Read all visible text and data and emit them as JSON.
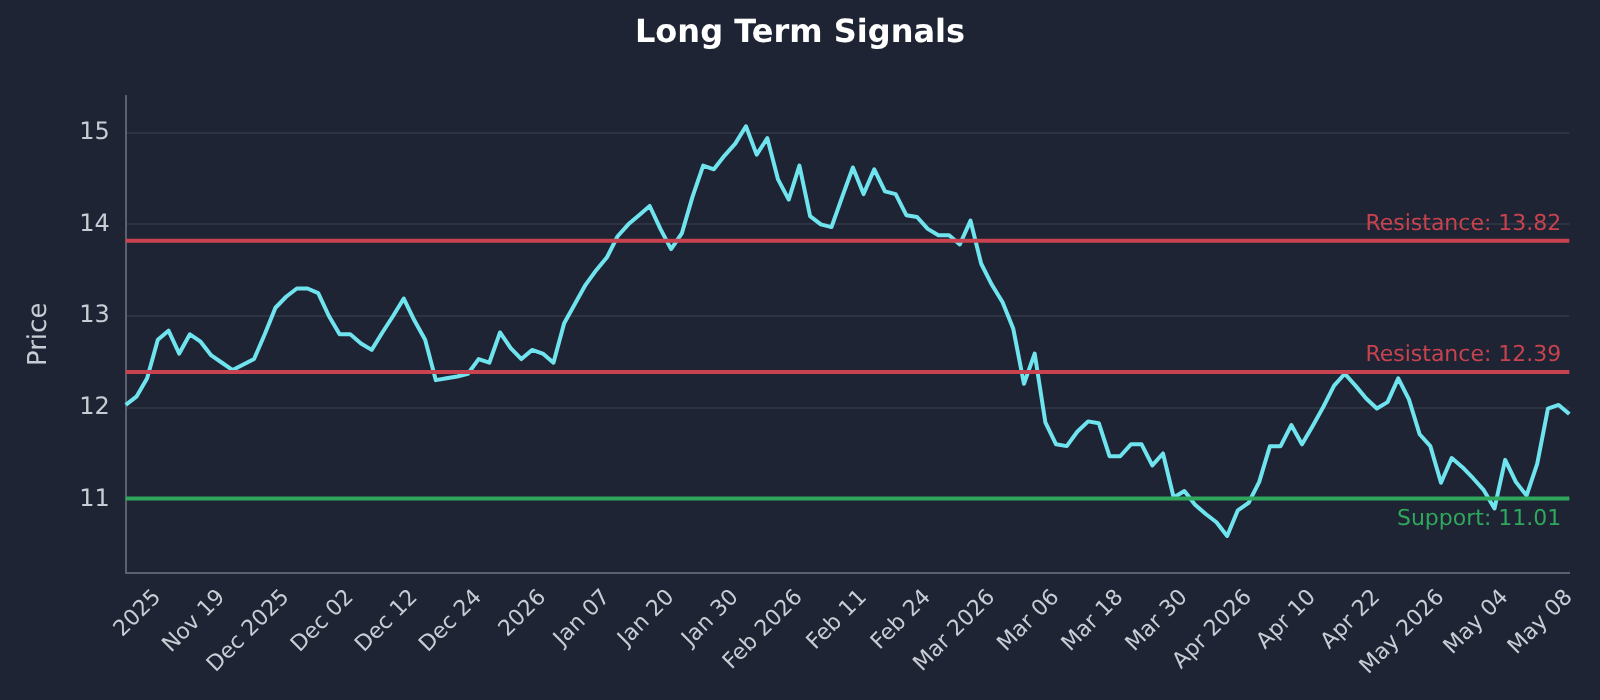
{
  "chart_data": {
    "type": "line",
    "title": "Long Term Signals",
    "ylabel": "Price",
    "categories": [
      null,
      null,
      null,
      "2025",
      null,
      null,
      null,
      null,
      null,
      "Nov 19",
      null,
      null,
      null,
      null,
      null,
      "Dec 2025",
      null,
      null,
      null,
      null,
      null,
      "Dec 02",
      null,
      null,
      null,
      null,
      null,
      "Dec 12",
      null,
      null,
      null,
      null,
      null,
      "Dec 24",
      null,
      null,
      null,
      null,
      null,
      "2026",
      null,
      null,
      null,
      null,
      null,
      "Jan 07",
      null,
      null,
      null,
      null,
      null,
      "Jan 20",
      null,
      null,
      null,
      null,
      null,
      "Jan 30",
      null,
      null,
      null,
      null,
      null,
      "Feb 2026",
      null,
      null,
      null,
      null,
      null,
      "Feb 11",
      null,
      null,
      null,
      null,
      null,
      "Feb 24",
      null,
      null,
      null,
      null,
      null,
      "Mar 2026",
      null,
      null,
      null,
      null,
      null,
      "Mar 06",
      null,
      null,
      null,
      null,
      null,
      "Mar 18",
      null,
      null,
      null,
      null,
      null,
      "Mar 30",
      null,
      null,
      null,
      null,
      null,
      "Apr 2026",
      null,
      null,
      null,
      null,
      null,
      "Apr 10",
      null,
      null,
      null,
      null,
      null,
      "Apr 22",
      null,
      null,
      null,
      null,
      null,
      "May 2026",
      null,
      null,
      null,
      null,
      null,
      "May 04",
      null,
      null,
      null,
      null,
      null,
      "May 08"
    ],
    "series": [
      {
        "color": "#6fe3ee",
        "values": [
          12.03,
          12.12,
          12.32,
          12.74,
          12.84,
          12.59,
          12.8,
          12.72,
          12.57,
          12.49,
          12.41,
          12.47,
          12.53,
          12.8,
          13.09,
          13.21,
          13.3,
          13.3,
          13.25,
          13.0,
          12.8,
          12.8,
          12.7,
          12.63,
          12.82,
          13.0,
          13.19,
          12.95,
          12.74,
          12.3,
          12.32,
          12.34,
          12.37,
          12.53,
          12.49,
          12.82,
          12.65,
          12.53,
          12.63,
          12.59,
          12.49,
          12.92,
          13.13,
          13.34,
          13.5,
          13.64,
          13.87,
          14.0,
          14.1,
          14.2,
          13.95,
          13.73,
          13.9,
          14.3,
          14.64,
          14.6,
          14.75,
          14.88,
          15.07,
          14.76,
          14.94,
          14.49,
          14.27,
          14.64,
          14.09,
          14.0,
          13.97,
          14.3,
          14.62,
          14.33,
          14.6,
          14.36,
          14.33,
          14.1,
          14.08,
          13.95,
          13.88,
          13.88,
          13.78,
          14.04,
          13.57,
          13.34,
          13.15,
          12.86,
          12.26,
          12.59,
          11.84,
          11.6,
          11.58,
          11.74,
          11.85,
          11.83,
          11.47,
          11.47,
          11.6,
          11.6,
          11.37,
          11.5,
          11.02,
          11.09,
          10.94,
          10.84,
          10.75,
          10.6,
          10.88,
          10.96,
          11.19,
          11.58,
          11.58,
          11.81,
          11.6,
          11.8,
          12.01,
          12.24,
          12.37,
          12.24,
          12.1,
          11.99,
          12.06,
          12.32,
          12.09,
          11.71,
          11.58,
          11.18,
          11.45,
          11.35,
          11.23,
          11.1,
          10.9,
          11.43,
          11.19,
          11.04,
          11.39,
          11.99,
          12.03,
          11.93
        ]
      }
    ],
    "ylim": [
      10.2,
      15.4
    ],
    "yticks": [
      11,
      12,
      13,
      14,
      15
    ],
    "grid": "y",
    "legend": false,
    "marker": "none",
    "line_style": "solid",
    "ref_lines": [
      {
        "axis": "y",
        "value": 13.82,
        "label": "Resistance: 13.82",
        "color": "#c8434f"
      },
      {
        "axis": "y",
        "value": 12.39,
        "label": "Resistance: 12.39",
        "color": "#c8434f"
      },
      {
        "axis": "y",
        "value": 11.01,
        "label": "Support: 11.01",
        "color": "#2fa75c"
      }
    ]
  }
}
